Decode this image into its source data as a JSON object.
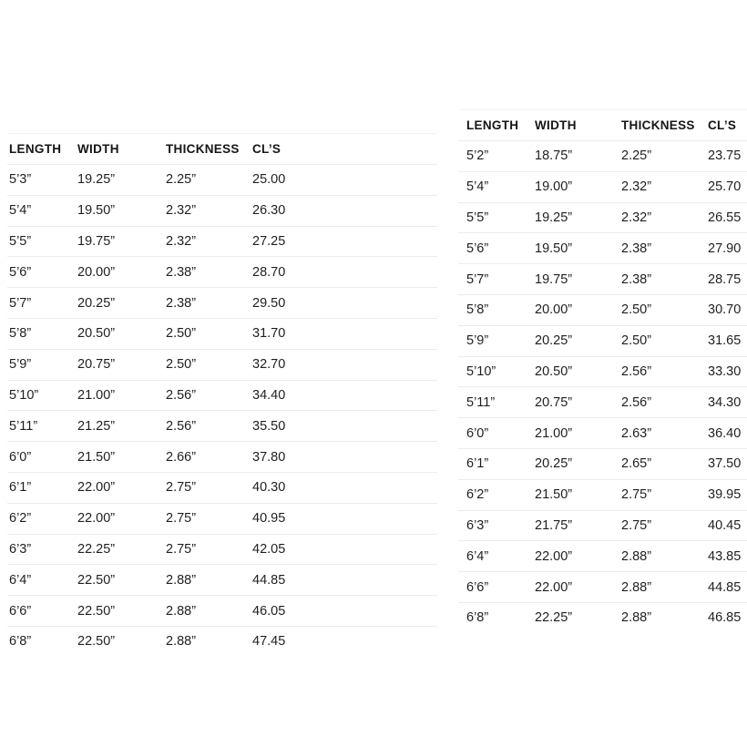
{
  "page": {
    "background_color": "#ffffff",
    "text_color": "#1f1f1f",
    "header_text_color": "#161616",
    "divider_color": "#ececec"
  },
  "chart_data": [
    {
      "type": "table",
      "name": "size-chart-left",
      "columns": [
        "LENGTH",
        "WIDTH",
        "THICKNESS",
        "CL’S"
      ],
      "rows": [
        [
          "5’3”",
          "19.25”",
          "2.25”",
          "25.00"
        ],
        [
          "5’4”",
          "19.50”",
          "2.32”",
          "26.30"
        ],
        [
          "5’5”",
          "19.75”",
          "2.32”",
          "27.25"
        ],
        [
          "5’6”",
          "20.00”",
          "2.38”",
          "28.70"
        ],
        [
          "5’7”",
          "20.25”",
          "2.38”",
          "29.50"
        ],
        [
          "5’8”",
          "20.50”",
          "2.50”",
          "31.70"
        ],
        [
          "5’9”",
          "20.75”",
          "2.50”",
          "32.70"
        ],
        [
          "5’10”",
          "21.00”",
          "2.56”",
          "34.40"
        ],
        [
          "5’11”",
          "21.25”",
          "2.56”",
          "35.50"
        ],
        [
          "6’0”",
          "21.50”",
          "2.66”",
          "37.80"
        ],
        [
          "6’1”",
          "22.00”",
          "2.75”",
          "40.30"
        ],
        [
          "6’2”",
          "22.00”",
          "2.75”",
          "40.95"
        ],
        [
          "6’3”",
          "22.25”",
          "2.75”",
          "42.05"
        ],
        [
          "6’4”",
          "22.50”",
          "2.88”",
          "44.85"
        ],
        [
          "6’6”",
          "22.50”",
          "2.88”",
          "46.05"
        ],
        [
          "6’8”",
          "22.50”",
          "2.88”",
          "47.45"
        ]
      ]
    },
    {
      "type": "table",
      "name": "size-chart-right",
      "columns": [
        "LENGTH",
        "WIDTH",
        "THICKNESS",
        "CL’S"
      ],
      "rows": [
        [
          "5’2”",
          "18.75”",
          "2.25”",
          "23.75"
        ],
        [
          "5’4”",
          "19.00”",
          "2.32”",
          "25.70"
        ],
        [
          "5’5”",
          "19.25”",
          "2.32”",
          "26.55"
        ],
        [
          "5’6”",
          "19.50”",
          "2.38”",
          "27.90"
        ],
        [
          "5’7”",
          "19.75”",
          "2.38”",
          "28.75"
        ],
        [
          "5’8”",
          "20.00”",
          "2.50”",
          "30.70"
        ],
        [
          "5’9”",
          "20.25”",
          "2.50”",
          "31.65"
        ],
        [
          "5’10”",
          "20.50”",
          "2.56”",
          "33.30"
        ],
        [
          "5’11”",
          "20.75”",
          "2.56”",
          "34.30"
        ],
        [
          "6’0”",
          "21.00”",
          "2.63”",
          "36.40"
        ],
        [
          "6’1”",
          "20.25”",
          "2.65”",
          "37.50"
        ],
        [
          "6’2”",
          "21.50”",
          "2.75”",
          "39.95"
        ],
        [
          "6’3”",
          "21.75”",
          "2.75”",
          "40.45"
        ],
        [
          "6’4”",
          "22.00”",
          "2.88”",
          "43.85"
        ],
        [
          "6’6”",
          "22.00”",
          "2.88”",
          "44.85"
        ],
        [
          "6’8”",
          "22.25”",
          "2.88”",
          "46.85"
        ]
      ]
    }
  ]
}
